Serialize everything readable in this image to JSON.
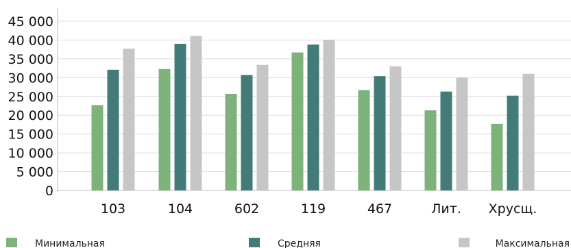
{
  "chart_data": {
    "type": "bar",
    "categories": [
      "103",
      "104",
      "602",
      "119",
      "467",
      "Лит.",
      "Хрусщ."
    ],
    "series": [
      {
        "name": "Минимальная",
        "values": [
          22700,
          32300,
          25700,
          36700,
          26700,
          21300,
          17700
        ]
      },
      {
        "name": "Средняя",
        "values": [
          32100,
          39000,
          30700,
          38800,
          30400,
          26300,
          25200
        ]
      },
      {
        "name": "Максимальная",
        "values": [
          37700,
          41100,
          33400,
          40100,
          33000,
          30000,
          31000
        ]
      }
    ],
    "colors": [
      "#7db37a",
      "#427b78",
      "#c6c6c6"
    ],
    "ylim": [
      0,
      45000
    ],
    "yticks": [
      "0",
      "5 000",
      "10 000",
      "15 000",
      "20 000",
      "25 000",
      "30 000",
      "35 000",
      "40 000",
      "45 000"
    ],
    "grid": true,
    "legend_position": "bottom"
  }
}
